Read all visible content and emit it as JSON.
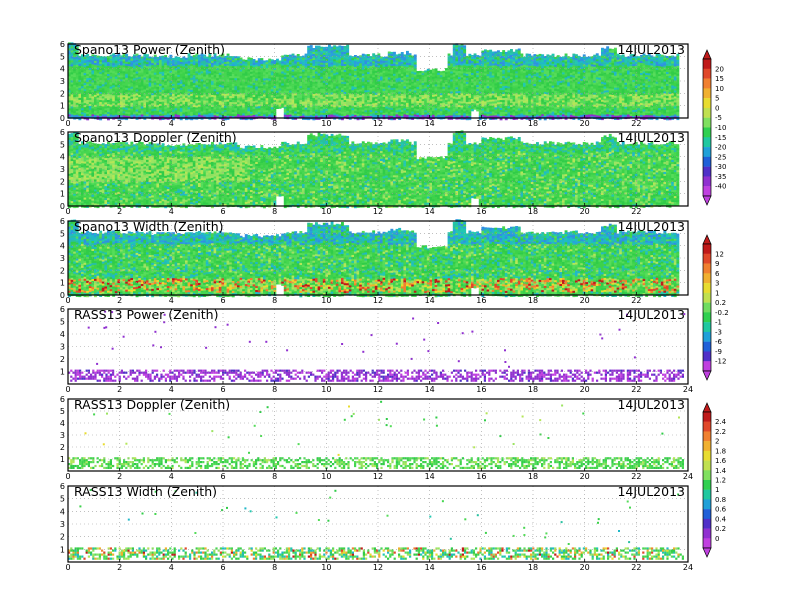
{
  "chart_data": [
    {
      "type": "heatmap",
      "title": "Spano13 Power (Zenith)",
      "date": "14JUL2013",
      "x_ticks": [
        "0",
        "2",
        "4",
        "6",
        "8",
        "10",
        "12",
        "14",
        "16",
        "18",
        "20",
        "22"
      ],
      "y_ticks": [
        "0",
        "1",
        "2",
        "3",
        "4",
        "5",
        "6"
      ],
      "xlim": [
        0,
        24
      ],
      "ylim": [
        0,
        6
      ],
      "colorbar_group": "power",
      "grid": true
    },
    {
      "type": "heatmap",
      "title": "Spano13 Doppler (Zenith)",
      "date": "14JUL2013",
      "x_ticks": [
        "0",
        "2",
        "4",
        "6",
        "8",
        "10",
        "12",
        "14",
        "16",
        "18",
        "20",
        "22"
      ],
      "y_ticks": [
        "0",
        "1",
        "2",
        "3",
        "4",
        "5",
        "6"
      ],
      "xlim": [
        0,
        24
      ],
      "ylim": [
        0,
        6
      ],
      "colorbar_group": "power",
      "grid": true
    },
    {
      "type": "heatmap",
      "title": "Spano13 Width (Zenith)",
      "date": "14JUL2013",
      "x_ticks": [
        "0",
        "2",
        "4",
        "6",
        "8",
        "10",
        "12",
        "14",
        "16",
        "18",
        "20",
        "22"
      ],
      "y_ticks": [
        "0",
        "1",
        "2",
        "3",
        "4",
        "5",
        "6"
      ],
      "xlim": [
        0,
        24
      ],
      "ylim": [
        0,
        6
      ],
      "colorbar_group": "width",
      "grid": true
    },
    {
      "type": "heatmap",
      "title": "RASS13 Power (Zenith)",
      "date": "14JUL2013",
      "x_ticks": [
        "0",
        "2",
        "4",
        "6",
        "8",
        "10",
        "12",
        "14",
        "16",
        "18",
        "20",
        "22",
        "24"
      ],
      "y_ticks": [
        "1",
        "2",
        "3",
        "4",
        "5",
        "6"
      ],
      "xlim": [
        0,
        24
      ],
      "ylim": [
        0,
        6
      ],
      "colorbar_group": "width",
      "grid": true
    },
    {
      "type": "heatmap",
      "title": "RASS13 Doppler (Zenith)",
      "date": "14JUL2013",
      "x_ticks": [
        "0",
        "2",
        "4",
        "6",
        "8",
        "10",
        "12",
        "14",
        "16",
        "18",
        "20",
        "22",
        "24"
      ],
      "y_ticks": [
        "1",
        "2",
        "3",
        "4",
        "5",
        "6"
      ],
      "xlim": [
        0,
        24
      ],
      "ylim": [
        0,
        6
      ],
      "colorbar_group": "rass",
      "grid": true
    },
    {
      "type": "heatmap",
      "title": "RASS13 Width (Zenith)",
      "date": "14JUL2013",
      "x_ticks": [
        "0",
        "2",
        "4",
        "6",
        "8",
        "10",
        "12",
        "14",
        "16",
        "18",
        "20",
        "22",
        "24"
      ],
      "y_ticks": [
        "1",
        "2",
        "3",
        "4",
        "5",
        "6"
      ],
      "xlim": [
        0,
        24
      ],
      "ylim": [
        0,
        6
      ],
      "colorbar_group": "rass",
      "grid": true
    }
  ],
  "colorbars": [
    {
      "id": "power",
      "labels": [
        "20",
        "15",
        "10",
        "5",
        "0",
        "-5",
        "-10",
        "-15",
        "-20",
        "-25",
        "-30",
        "-35",
        "-40"
      ],
      "colors": [
        "#c01a1a",
        "#e0482a",
        "#f08030",
        "#f0b030",
        "#e8dc30",
        "#c0e050",
        "#80e060",
        "#30d050",
        "#20c8a0",
        "#20a0d8",
        "#2060d8",
        "#5030c8",
        "#9030d0",
        "#c040e0"
      ]
    },
    {
      "id": "width",
      "labels": [
        "12",
        "9",
        "6",
        "3",
        "1",
        "0.2",
        "-0.2",
        "-1",
        "-3",
        "-6",
        "-9",
        "-12"
      ],
      "colors": [
        "#c01a1a",
        "#e0482a",
        "#f08030",
        "#f0b030",
        "#e8dc30",
        "#c0e050",
        "#70dc60",
        "#30d050",
        "#20c8a0",
        "#20a0d8",
        "#2060d8",
        "#5030c8",
        "#c040e0"
      ]
    },
    {
      "id": "rass",
      "labels": [
        "2.4",
        "2.2",
        "2",
        "1.8",
        "1.6",
        "1.4",
        "1.2",
        "1",
        "0.8",
        "0.6",
        "0.4",
        "0.2",
        "0"
      ],
      "colors": [
        "#c01a1a",
        "#e0482a",
        "#f08030",
        "#f0b030",
        "#e8dc30",
        "#c0e050",
        "#80e060",
        "#30d050",
        "#20c8a0",
        "#20a0d8",
        "#2060d8",
        "#5030c8",
        "#9030d0",
        "#c040e0"
      ]
    }
  ]
}
